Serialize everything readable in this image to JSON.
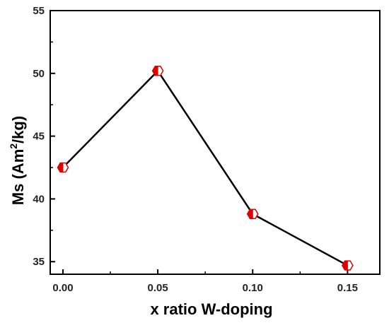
{
  "chart_data": {
    "type": "line",
    "xlabel": "x ratio W-doping",
    "ylabel_main": "Ms (Am",
    "ylabel_sup": "2",
    "ylabel_tail": "/kg)",
    "x": [
      0.0,
      0.05,
      0.1,
      0.15
    ],
    "x_tick_labels": [
      "0.00",
      "0.05",
      "0.10",
      "0.15"
    ],
    "y_ticks": [
      35,
      40,
      45,
      50,
      55
    ],
    "xlim": [
      -0.0067,
      0.167
    ],
    "ylim": [
      34,
      55
    ],
    "series": [
      {
        "values": [
          42.5,
          50.2,
          38.8,
          34.7
        ],
        "color": "#000000",
        "marker_color": "#e00000"
      }
    ],
    "grid": false,
    "legend": "none"
  }
}
